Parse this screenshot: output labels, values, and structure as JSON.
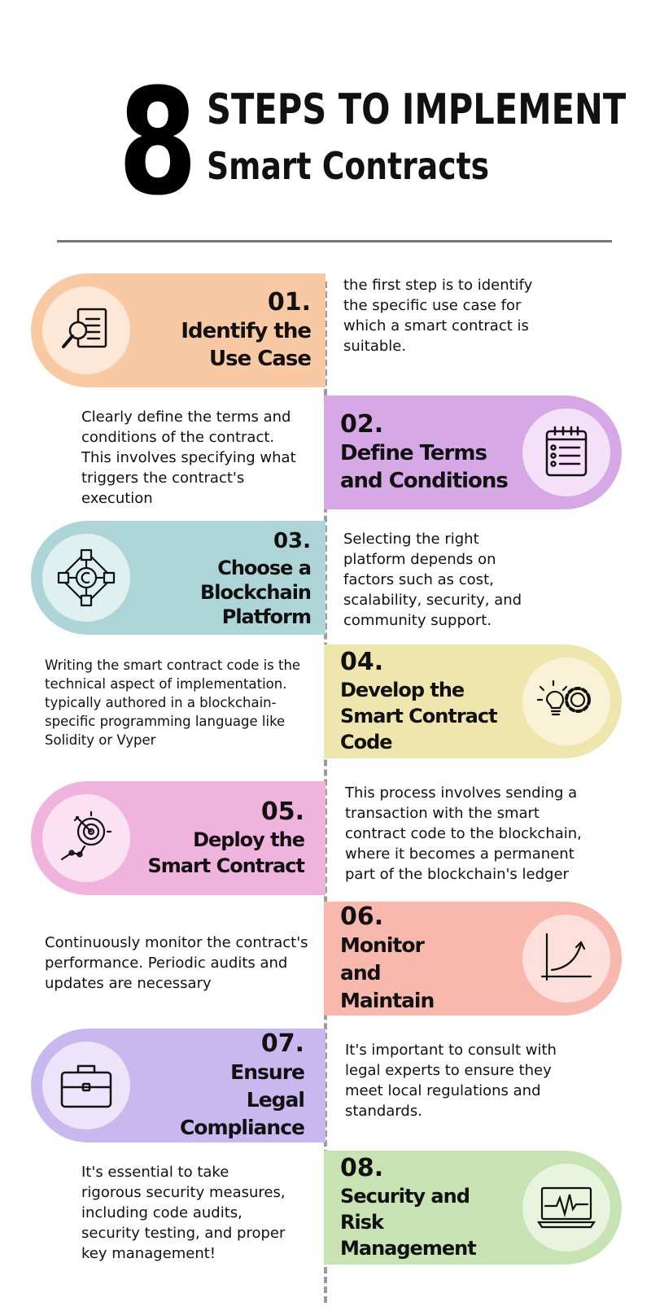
{
  "header": {
    "number": "8",
    "title_line1": "STEPS TO IMPLEMENT",
    "title_line2": "Smart Contracts"
  },
  "colors": {
    "step1": "#f9c9a4",
    "step2": "#d7a8e6",
    "step3": "#add4d6",
    "step4": "#efe6ae",
    "step5": "#efb3dd",
    "step6": "#f8b8ad",
    "step7": "#c9b8ef",
    "step8": "#c8e3b3",
    "timeline": "#9b9b9b",
    "divider": "#777777"
  },
  "steps": [
    {
      "num": "01.",
      "title": "Identify the Use Case",
      "icon": "magnifier-document-icon",
      "desc": "the first step is to identify the specific use case for which a smart contract is suitable."
    },
    {
      "num": "02.",
      "title": "Define Terms and Conditions",
      "icon": "checklist-icon",
      "desc": "Clearly define the terms and conditions of the contract. This involves specifying what triggers the contract's execution"
    },
    {
      "num": "03.",
      "title": "Choose a Blockchain Platform",
      "icon": "blockchain-network-icon",
      "desc": "Selecting the right platform depends on factors such as cost, scalability, security, and community support."
    },
    {
      "num": "04.",
      "title": "Develop the Smart Contract Code",
      "icon": "lightbulb-gear-icon",
      "desc": "Writing the smart contract code is the technical aspect of implementation. typically authored in a blockchain-specific programming language like Solidity or Vyper"
    },
    {
      "num": "05.",
      "title": "Deploy the Smart Contract",
      "icon": "target-path-icon",
      "desc": "This process involves sending a transaction with the smart contract code to the blockchain, where it becomes a permanent part of the blockchain's ledger"
    },
    {
      "num": "06.",
      "title": "Monitor and Maintain",
      "icon": "growth-chart-icon",
      "desc": "Continuously monitor the contract's performance. Periodic audits and updates are necessary"
    },
    {
      "num": "07.",
      "title": "Ensure Legal Compliance",
      "icon": "briefcase-icon",
      "desc": "It's important to consult with legal experts to ensure they meet local regulations and standards."
    },
    {
      "num": "08.",
      "title": "Security and Risk Management",
      "icon": "monitor-heartbeat-icon",
      "desc": "It's essential to take rigorous security measures, including code audits, security testing, and proper key management!"
    }
  ]
}
